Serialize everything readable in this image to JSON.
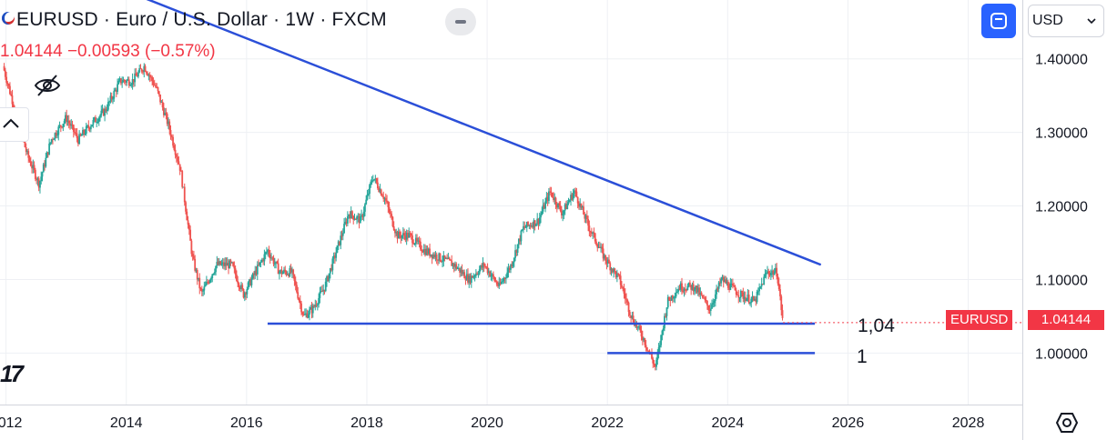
{
  "header": {
    "symbol_title": "EURUSD · Euro / U.S. Dollar · 1W · FXCM",
    "price_change": "1.04144 −0.00593 (−0.57%)"
  },
  "toolbar": {
    "currency": "USD"
  },
  "logo_text": "17",
  "price_tag": {
    "name": "EURUSD",
    "value": "1.04144"
  },
  "colors": {
    "up": "#26a69a",
    "down": "#ef5350",
    "trendline": "#2b4fd8",
    "accent": "#2962ff",
    "price_tag": "#f23645"
  },
  "icons": [
    "eye-off-icon",
    "chevron-up-icon",
    "collapse-icon",
    "screenshot-icon",
    "chevron-down-icon",
    "settings-hexagon-icon",
    "flag-icon"
  ],
  "chart_data": {
    "type": "candlestick",
    "x_axis": {
      "ticks": [
        2012,
        2014,
        2016,
        2018,
        2020,
        2022,
        2024,
        2026,
        2028
      ],
      "tick_labels": [
        "2012",
        "2014",
        "2016",
        "2018",
        "2020",
        "2022",
        "2024",
        "2026",
        "2028"
      ],
      "range": [
        2011.9,
        2028.9
      ]
    },
    "y_axis": {
      "ticks": [
        1.0,
        1.1,
        1.2,
        1.3,
        1.4
      ],
      "tick_labels": [
        "1.00000",
        "1.10000",
        "1.20000",
        "1.30000",
        "1.40000"
      ],
      "range": [
        0.93,
        1.48
      ]
    },
    "grid": true,
    "close_series": {
      "name": "EURUSD",
      "points": [
        [
          2011.95,
          1.39
        ],
        [
          2012.15,
          1.33
        ],
        [
          2012.35,
          1.27
        ],
        [
          2012.55,
          1.23
        ],
        [
          2012.75,
          1.29
        ],
        [
          2013.0,
          1.32
        ],
        [
          2013.2,
          1.29
        ],
        [
          2013.4,
          1.31
        ],
        [
          2013.65,
          1.33
        ],
        [
          2013.9,
          1.37
        ],
        [
          2014.1,
          1.37
        ],
        [
          2014.3,
          1.39
        ],
        [
          2014.5,
          1.36
        ],
        [
          2014.7,
          1.31
        ],
        [
          2014.9,
          1.25
        ],
        [
          2015.1,
          1.13
        ],
        [
          2015.25,
          1.08
        ],
        [
          2015.5,
          1.12
        ],
        [
          2015.75,
          1.12
        ],
        [
          2015.95,
          1.08
        ],
        [
          2016.15,
          1.11
        ],
        [
          2016.35,
          1.14
        ],
        [
          2016.55,
          1.11
        ],
        [
          2016.75,
          1.11
        ],
        [
          2016.95,
          1.05
        ],
        [
          2017.1,
          1.06
        ],
        [
          2017.3,
          1.09
        ],
        [
          2017.5,
          1.14
        ],
        [
          2017.7,
          1.19
        ],
        [
          2017.9,
          1.18
        ],
        [
          2018.1,
          1.24
        ],
        [
          2018.3,
          1.21
        ],
        [
          2018.5,
          1.16
        ],
        [
          2018.7,
          1.16
        ],
        [
          2018.95,
          1.14
        ],
        [
          2019.2,
          1.13
        ],
        [
          2019.45,
          1.12
        ],
        [
          2019.7,
          1.1
        ],
        [
          2019.95,
          1.12
        ],
        [
          2020.2,
          1.09
        ],
        [
          2020.4,
          1.12
        ],
        [
          2020.6,
          1.17
        ],
        [
          2020.85,
          1.18
        ],
        [
          2021.05,
          1.22
        ],
        [
          2021.25,
          1.19
        ],
        [
          2021.45,
          1.22
        ],
        [
          2021.7,
          1.17
        ],
        [
          2021.95,
          1.13
        ],
        [
          2022.2,
          1.1
        ],
        [
          2022.4,
          1.05
        ],
        [
          2022.6,
          1.02
        ],
        [
          2022.8,
          0.98
        ],
        [
          2023.0,
          1.07
        ],
        [
          2023.2,
          1.09
        ],
        [
          2023.45,
          1.09
        ],
        [
          2023.7,
          1.06
        ],
        [
          2023.9,
          1.1
        ],
        [
          2024.2,
          1.08
        ],
        [
          2024.45,
          1.07
        ],
        [
          2024.65,
          1.11
        ],
        [
          2024.82,
          1.11
        ],
        [
          2024.92,
          1.04144
        ]
      ]
    },
    "trend_line": {
      "from": [
        2011.9,
        1.56
      ],
      "to": [
        2025.55,
        1.12
      ]
    },
    "support_lines": [
      {
        "from": [
          2016.35,
          1.04
        ],
        "to": [
          2025.45,
          1.04
        ]
      },
      {
        "from": [
          2022.0,
          1.0
        ],
        "to": [
          2025.45,
          1.0
        ]
      }
    ],
    "annotations": [
      "1,04",
      "1"
    ],
    "last_price": 1.04144
  }
}
